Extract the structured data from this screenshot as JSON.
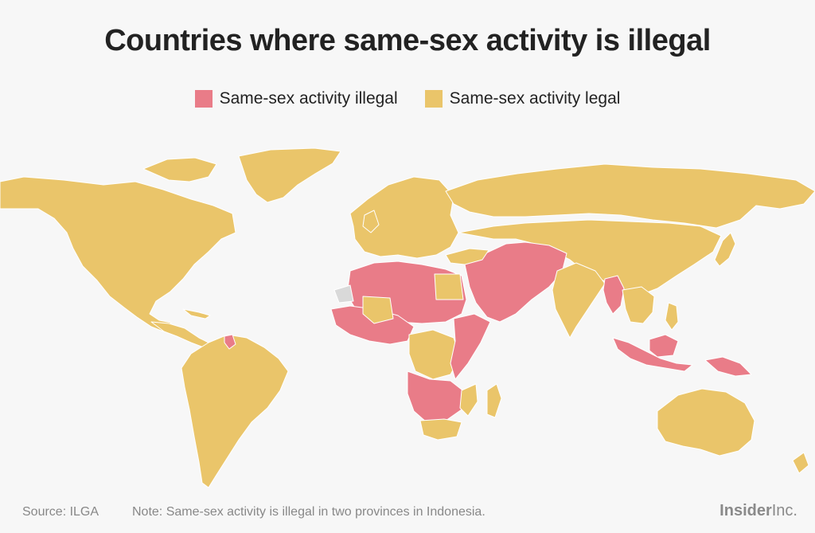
{
  "title": "Countries where same-sex activity is illegal",
  "legend": {
    "illegal_label": "Same-sex activity illegal",
    "legal_label": "Same-sex activity legal",
    "colors": {
      "illegal": "#e97c88",
      "legal": "#eac56a",
      "no_data": "#d9d9d9",
      "border": "#ffffff"
    }
  },
  "footer": {
    "source": "Source: ILGA",
    "note": "Note: Same-sex activity is illegal in two provinces in Indonesia.",
    "brand_bold": "Insider",
    "brand_light": "Inc."
  },
  "map_data": {
    "regions_illegal": [
      "North Africa",
      "West Africa",
      "East Africa",
      "Southern Africa",
      "Middle East",
      "South Asia",
      "Myanmar",
      "Malaysia",
      "Indonesia",
      "Papua New Guinea",
      "Guyana",
      "Caribbean"
    ],
    "regions_legal": [
      "North America",
      "Central America",
      "South America",
      "Europe",
      "Russia",
      "Central Asia",
      "China",
      "India",
      "Southeast Asia",
      "Australia",
      "New Zealand",
      "Central Africa",
      "South Africa"
    ]
  }
}
